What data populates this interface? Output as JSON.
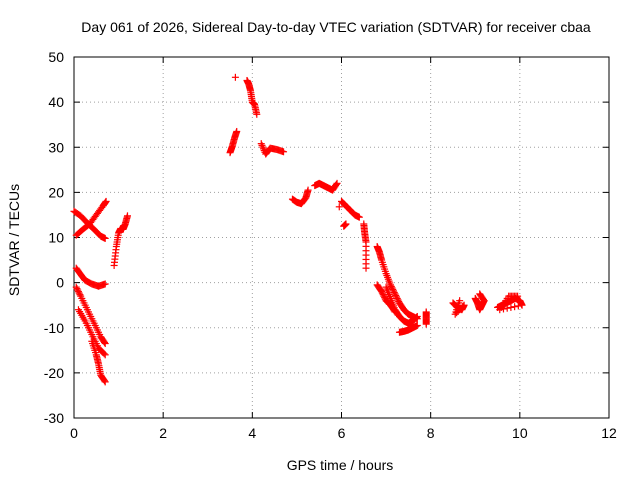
{
  "chart_data": {
    "type": "scatter",
    "title": "Day 061 of 2026, Sidereal Day-to-day VTEC variation (SDTVAR) for receiver cbaa",
    "xlabel": "GPS time / hours",
    "ylabel": "SDTVAR / TECUs",
    "xlim": [
      0,
      12
    ],
    "ylim": [
      -30,
      50
    ],
    "xticks": [
      0,
      2,
      4,
      6,
      8,
      10,
      12
    ],
    "yticks": [
      -30,
      -20,
      -10,
      0,
      10,
      20,
      30,
      40,
      50
    ],
    "grid": true,
    "marker": "plus",
    "color": "#ff0000",
    "series": [
      {
        "name": "SDTVAR",
        "segments": [
          {
            "x": [
              0.0,
              0.15,
              0.3,
              0.45,
              0.6,
              0.7
            ],
            "y": [
              15.8,
              14.8,
              13.2,
              11.8,
              10.3,
              9.8
            ]
          },
          {
            "x": [
              0.05,
              0.2,
              0.35,
              0.5,
              0.65,
              0.72
            ],
            "y": [
              10.5,
              11.8,
              13.0,
              15.0,
              17.0,
              18.0
            ]
          },
          {
            "x": [
              0.05,
              0.15,
              0.25,
              0.4,
              0.55,
              0.7
            ],
            "y": [
              3.2,
              1.8,
              0.5,
              -0.3,
              -0.8,
              -0.3
            ]
          },
          {
            "x": [
              0.05,
              0.15,
              0.3,
              0.45,
              0.6,
              0.7
            ],
            "y": [
              -1.0,
              -3.0,
              -6.0,
              -9.0,
              -12.0,
              -13.5
            ]
          },
          {
            "x": [
              0.1,
              0.25,
              0.4,
              0.55,
              0.7
            ],
            "y": [
              -6.0,
              -8.5,
              -11.5,
              -14.5,
              -16.0
            ]
          },
          {
            "x": [
              0.4,
              0.5,
              0.55,
              0.6,
              0.7
            ],
            "y": [
              -13.0,
              -16.0,
              -18.0,
              -20.5,
              -22.0
            ]
          },
          {
            "x": [
              0.9,
              0.95,
              1.0,
              1.05,
              1.1,
              1.15,
              1.2
            ],
            "y": [
              3.8,
              8.0,
              11.0,
              12.0,
              11.8,
              13.0,
              14.8
            ]
          },
          {
            "x": [
              3.5,
              3.55,
              3.6,
              3.65
            ],
            "y": [
              28.8,
              30.2,
              32.0,
              33.5
            ]
          },
          {
            "x": [
              3.62
            ],
            "y": [
              45.5
            ]
          },
          {
            "x": [
              3.88,
              3.92,
              3.96,
              4.0,
              4.05,
              4.1
            ],
            "y": [
              44.8,
              44.0,
              42.5,
              40.0,
              39.5,
              37.3
            ]
          },
          {
            "x": [
              4.2,
              4.3,
              4.4,
              4.55,
              4.7
            ],
            "y": [
              30.8,
              28.5,
              29.8,
              29.5,
              29.0
            ]
          },
          {
            "x": [
              4.9,
              5.0,
              5.1,
              5.2,
              5.25
            ],
            "y": [
              18.5,
              17.8,
              17.5,
              18.8,
              20.5
            ]
          },
          {
            "x": [
              5.4,
              5.5,
              5.6,
              5.7,
              5.8,
              5.9
            ],
            "y": [
              21.5,
              22.0,
              21.5,
              21.0,
              20.5,
              22.0
            ]
          },
          {
            "x": [
              5.95
            ],
            "y": [
              16.8
            ]
          },
          {
            "x": [
              6.05,
              6.1
            ],
            "y": [
              12.5,
              13.0
            ]
          },
          {
            "x": [
              6.0,
              6.1,
              6.2,
              6.3,
              6.4
            ],
            "y": [
              18.0,
              17.0,
              16.0,
              15.0,
              14.5
            ]
          },
          {
            "x": [
              6.5,
              6.52,
              6.55,
              6.55
            ],
            "y": [
              13.0,
              11.0,
              9.0,
              3.2
            ]
          },
          {
            "x": [
              6.8,
              6.85,
              6.9,
              7.0,
              7.1,
              7.2,
              7.3,
              7.4,
              7.5,
              7.6,
              7.7
            ],
            "y": [
              8.0,
              6.8,
              5.0,
              2.0,
              -0.5,
              -2.5,
              -4.5,
              -6.0,
              -7.0,
              -7.5,
              -8.0
            ]
          },
          {
            "x": [
              6.8,
              6.9,
              7.0,
              7.1,
              7.2
            ],
            "y": [
              -0.5,
              -2.0,
              -4.0,
              -5.0,
              -6.5
            ]
          },
          {
            "x": [
              7.0,
              7.1,
              7.2,
              7.3,
              7.4,
              7.5,
              7.6,
              7.7
            ],
            "y": [
              -1.0,
              -3.5,
              -6.0,
              -7.5,
              -8.5,
              -9.0,
              -8.5,
              -7.5
            ]
          },
          {
            "x": [
              7.3,
              7.4,
              7.5,
              7.6,
              7.7
            ],
            "y": [
              -11.0,
              -10.8,
              -10.5,
              -10.0,
              -9.5
            ]
          },
          {
            "x": [
              7.9,
              7.9,
              7.9
            ],
            "y": [
              -6.5,
              -7.8,
              -9.2
            ]
          },
          {
            "x": [
              8.5,
              8.6,
              8.7,
              8.75,
              8.55,
              8.65
            ],
            "y": [
              -4.5,
              -5.5,
              -6.0,
              -5.0,
              -7.0,
              -4.0
            ]
          },
          {
            "x": [
              9.0,
              9.05,
              9.1,
              9.15,
              9.2,
              9.1
            ],
            "y": [
              -3.5,
              -4.5,
              -6.0,
              -5.0,
              -4.0,
              -2.5
            ]
          },
          {
            "x": [
              9.5,
              9.6,
              9.7,
              9.8,
              9.9,
              10.0,
              10.05,
              9.55,
              9.75,
              9.95
            ],
            "y": [
              -5.5,
              -5.0,
              -4.5,
              -4.0,
              -3.5,
              -4.0,
              -5.0,
              -6.0,
              -3.0,
              -3.0
            ]
          }
        ]
      }
    ]
  }
}
